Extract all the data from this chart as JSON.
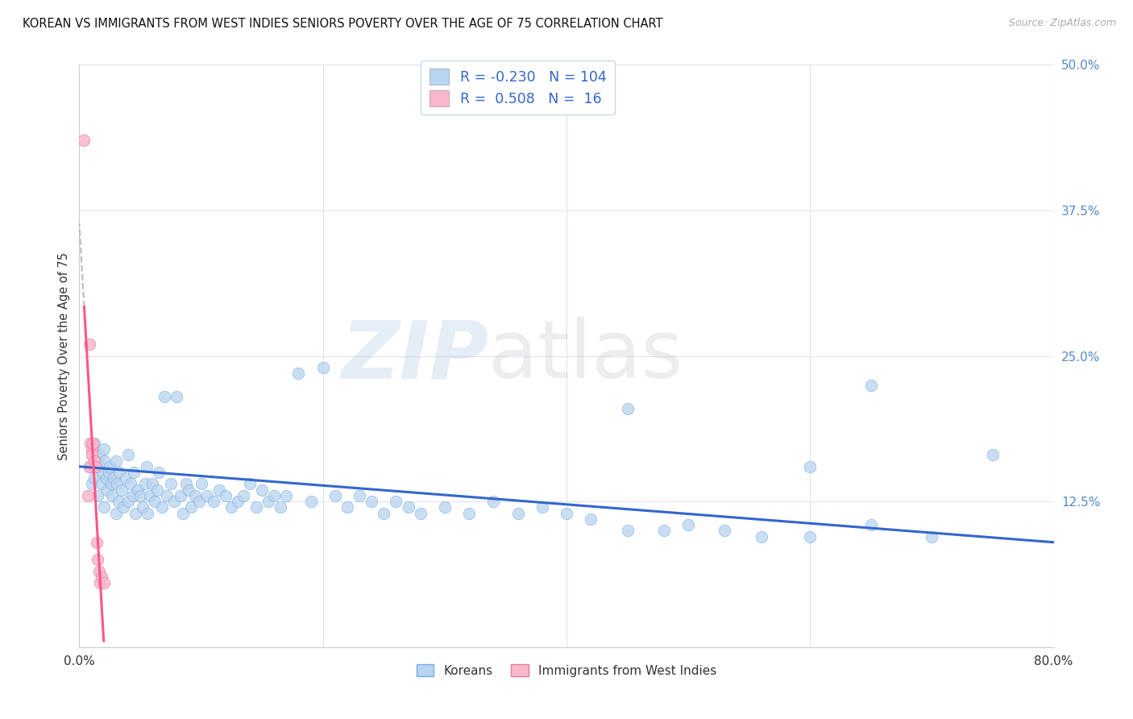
{
  "title": "KOREAN VS IMMIGRANTS FROM WEST INDIES SENIORS POVERTY OVER THE AGE OF 75 CORRELATION CHART",
  "source": "Source: ZipAtlas.com",
  "ylabel": "Seniors Poverty Over the Age of 75",
  "xlim": [
    0.0,
    0.8
  ],
  "ylim": [
    0.0,
    0.5
  ],
  "yticks_right": [
    0.125,
    0.25,
    0.375,
    0.5
  ],
  "yticklabels_right": [
    "12.5%",
    "25.0%",
    "37.5%",
    "50.0%"
  ],
  "korean_color": "#b8d4f0",
  "korean_edge": "#7aacde",
  "westindies_color": "#f8b8cc",
  "westindies_edge": "#e8789a",
  "trend_korean_color": "#3366cc",
  "trend_westindies_color": "#ff5588",
  "grid_color": "#e0e4ee",
  "R_korean": -0.23,
  "N_korean": 104,
  "R_westindies": 0.508,
  "N_westindies": 16,
  "korean_x": [
    0.008,
    0.01,
    0.01,
    0.012,
    0.012,
    0.015,
    0.015,
    0.016,
    0.017,
    0.018,
    0.019,
    0.02,
    0.02,
    0.021,
    0.022,
    0.023,
    0.024,
    0.025,
    0.026,
    0.027,
    0.028,
    0.03,
    0.03,
    0.031,
    0.032,
    0.033,
    0.035,
    0.036,
    0.038,
    0.04,
    0.04,
    0.042,
    0.044,
    0.045,
    0.046,
    0.048,
    0.05,
    0.052,
    0.054,
    0.055,
    0.056,
    0.058,
    0.06,
    0.062,
    0.064,
    0.065,
    0.068,
    0.07,
    0.072,
    0.075,
    0.078,
    0.08,
    0.083,
    0.085,
    0.088,
    0.09,
    0.092,
    0.095,
    0.098,
    0.1,
    0.105,
    0.11,
    0.115,
    0.12,
    0.125,
    0.13,
    0.135,
    0.14,
    0.145,
    0.15,
    0.155,
    0.16,
    0.165,
    0.17,
    0.18,
    0.19,
    0.2,
    0.21,
    0.22,
    0.23,
    0.24,
    0.25,
    0.26,
    0.27,
    0.28,
    0.3,
    0.32,
    0.34,
    0.36,
    0.38,
    0.4,
    0.42,
    0.45,
    0.48,
    0.5,
    0.53,
    0.56,
    0.6,
    0.65,
    0.7,
    0.45,
    0.6,
    0.65,
    0.75
  ],
  "korean_y": [
    0.155,
    0.165,
    0.14,
    0.175,
    0.145,
    0.16,
    0.13,
    0.155,
    0.165,
    0.14,
    0.15,
    0.17,
    0.12,
    0.16,
    0.145,
    0.135,
    0.15,
    0.155,
    0.14,
    0.13,
    0.145,
    0.16,
    0.115,
    0.14,
    0.125,
    0.15,
    0.135,
    0.12,
    0.145,
    0.165,
    0.125,
    0.14,
    0.13,
    0.15,
    0.115,
    0.135,
    0.13,
    0.12,
    0.14,
    0.155,
    0.115,
    0.13,
    0.14,
    0.125,
    0.135,
    0.15,
    0.12,
    0.215,
    0.13,
    0.14,
    0.125,
    0.215,
    0.13,
    0.115,
    0.14,
    0.135,
    0.12,
    0.13,
    0.125,
    0.14,
    0.13,
    0.125,
    0.135,
    0.13,
    0.12,
    0.125,
    0.13,
    0.14,
    0.12,
    0.135,
    0.125,
    0.13,
    0.12,
    0.13,
    0.235,
    0.125,
    0.24,
    0.13,
    0.12,
    0.13,
    0.125,
    0.115,
    0.125,
    0.12,
    0.115,
    0.12,
    0.115,
    0.125,
    0.115,
    0.12,
    0.115,
    0.11,
    0.1,
    0.1,
    0.105,
    0.1,
    0.095,
    0.095,
    0.105,
    0.095,
    0.205,
    0.155,
    0.225,
    0.165
  ],
  "westindies_x": [
    0.004,
    0.007,
    0.008,
    0.008,
    0.009,
    0.01,
    0.01,
    0.011,
    0.012,
    0.013,
    0.014,
    0.015,
    0.016,
    0.017,
    0.018,
    0.02
  ],
  "westindies_y": [
    0.435,
    0.13,
    0.155,
    0.26,
    0.175,
    0.17,
    0.165,
    0.175,
    0.16,
    0.155,
    0.09,
    0.075,
    0.065,
    0.055,
    0.06,
    0.055
  ],
  "wi_trend_x0": 0.004,
  "wi_trend_x1": 0.02,
  "wi_trend_dash_x1": 0.065,
  "korean_trend_x0": 0.0,
  "korean_trend_x1": 0.8
}
